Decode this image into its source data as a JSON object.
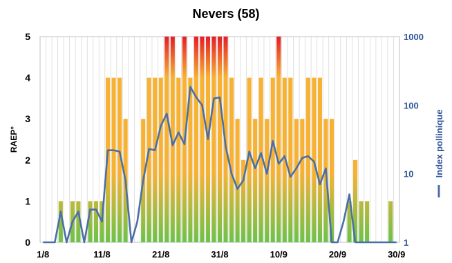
{
  "chart_data": {
    "type": "bar",
    "title": "Nevers (58)",
    "ylabel": "RAEP°",
    "ylim": [
      0,
      5
    ],
    "yticks": [
      "0",
      "1",
      "2",
      "3",
      "4",
      "5"
    ],
    "y2label": "Index pollinique",
    "y2scale": "log",
    "y2lim": [
      1,
      1000
    ],
    "y2ticks": [
      "1",
      "10",
      "100",
      "1000"
    ],
    "xticks": [
      "1/8",
      "11/8",
      "21/8",
      "31/8",
      "10/9",
      "20/9",
      "30/9"
    ],
    "legend": "Index pollinique",
    "grid": "vertical",
    "days": 61,
    "series": [
      {
        "name": "RAEP°",
        "type": "bar",
        "colors": {
          "low": "#6cc24a",
          "mid": "#f7b234",
          "high": "#e41e26"
        },
        "values": [
          0,
          0,
          0,
          1,
          0,
          1,
          1,
          0,
          1,
          1,
          1,
          4,
          4,
          4,
          3,
          0,
          0,
          3,
          4,
          4,
          4,
          5,
          5,
          4,
          5,
          4,
          5,
          5,
          5,
          5,
          5,
          5,
          4,
          3,
          2,
          4,
          3,
          4,
          3,
          4,
          5,
          4,
          4,
          3,
          3,
          4,
          4,
          4,
          3,
          3,
          0,
          0,
          1,
          2,
          1,
          1,
          0,
          0,
          0,
          1,
          0
        ]
      },
      {
        "name": "Index pollinique",
        "type": "line",
        "color": "#4a6fa5",
        "values": [
          1,
          1,
          1,
          2.8,
          1,
          2,
          2.8,
          1,
          3,
          3,
          2,
          22,
          22,
          21,
          8,
          1,
          2,
          8,
          23,
          22,
          50,
          75,
          26,
          40,
          27,
          185,
          130,
          100,
          32,
          125,
          130,
          25,
          10,
          6,
          8,
          21,
          12,
          20,
          10,
          30,
          14,
          18,
          9,
          12,
          17,
          18,
          15,
          7,
          12,
          1,
          1,
          2,
          5,
          1,
          1,
          1,
          1,
          1,
          1,
          1,
          1
        ]
      }
    ]
  }
}
